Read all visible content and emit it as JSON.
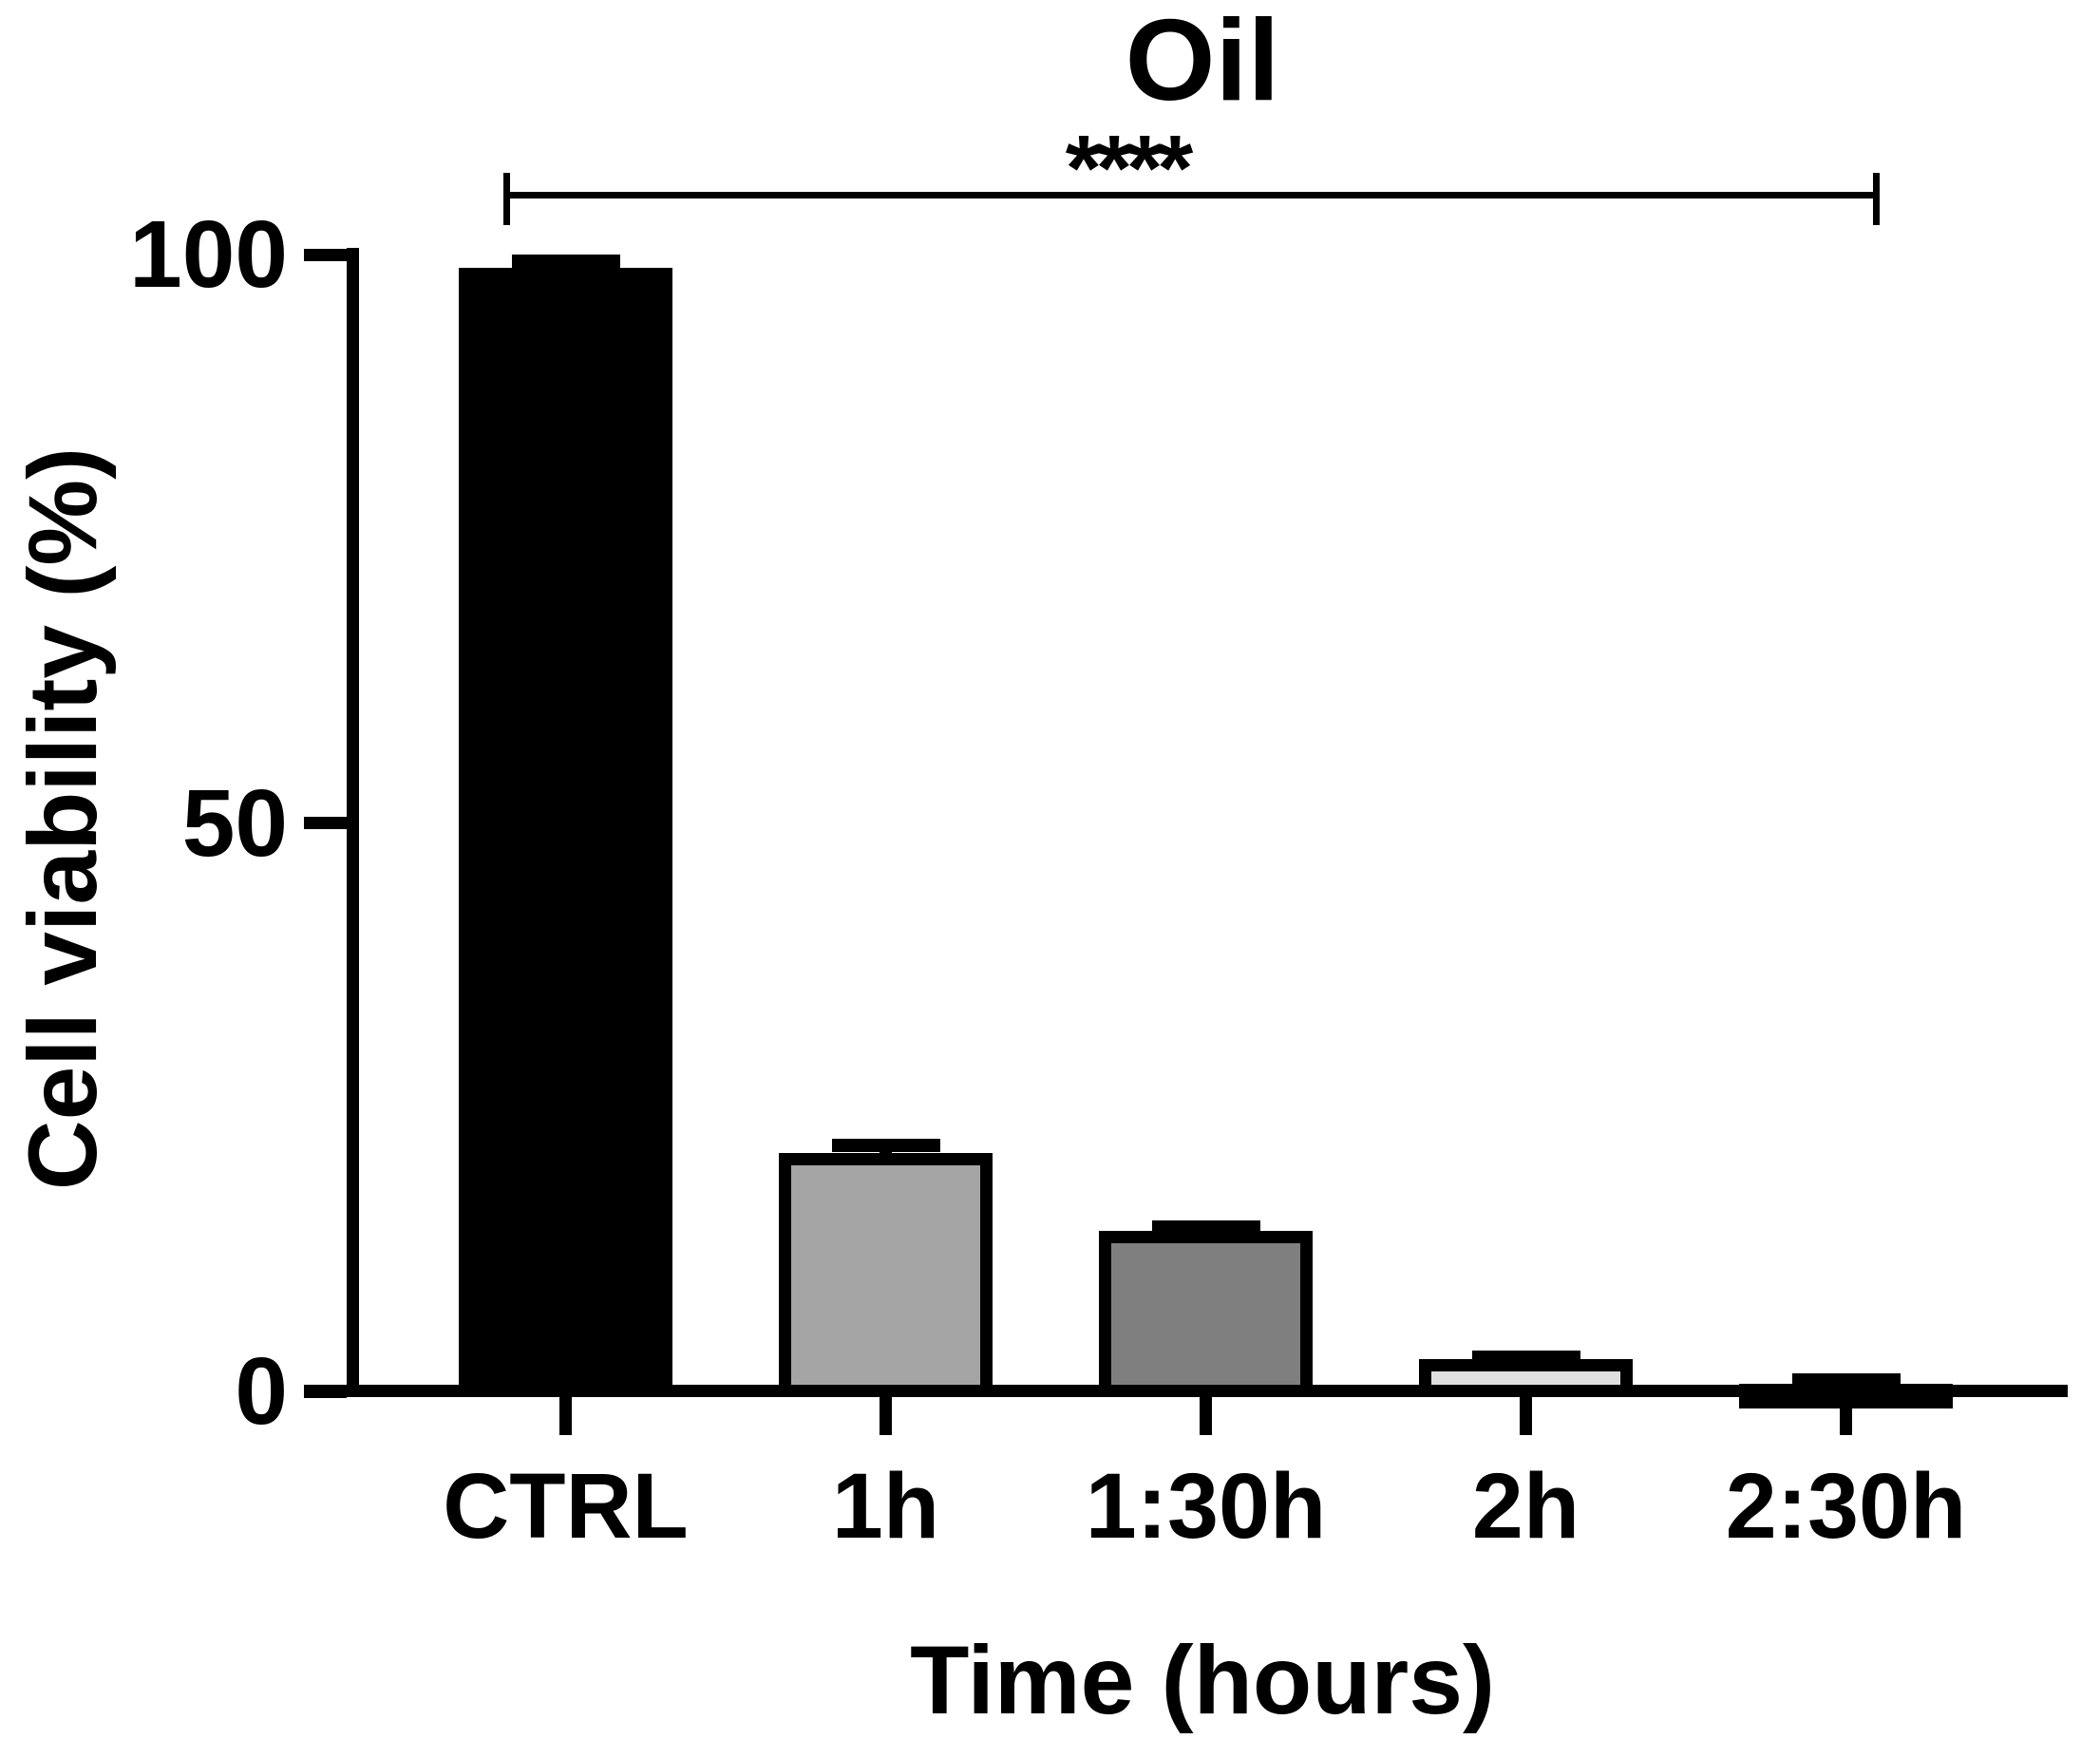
{
  "figure": {
    "title": "Oil",
    "significance_stars": "****",
    "ylabel": "Cell viability (%)",
    "xlabel": "Time (hours)"
  },
  "chart_data": {
    "type": "bar",
    "title": "Oil",
    "xlabel": "Time (hours)",
    "ylabel": "Cell viability (%)",
    "categories": [
      "CTRL",
      "1h",
      "1:30h",
      "2h",
      "2:30h"
    ],
    "values": [
      98.8,
      21.0,
      14.1,
      2.8,
      0.7
    ],
    "errors_plus": [
      1.2,
      1.2,
      0.9,
      0.8,
      0.9
    ],
    "bar_fill_colors": [
      "#000000",
      "#A5A5A5",
      "#7F7F7F",
      "#E0E0E0",
      "#000000"
    ],
    "bar_border_color": "#000000",
    "ylim": [
      0,
      100
    ],
    "yticks": [
      0,
      50,
      100
    ],
    "grid": false,
    "legend": null,
    "annotations": [
      {
        "type": "significance-bracket",
        "text": "****",
        "from_category": "CTRL",
        "to_category": "2:30h"
      }
    ]
  }
}
